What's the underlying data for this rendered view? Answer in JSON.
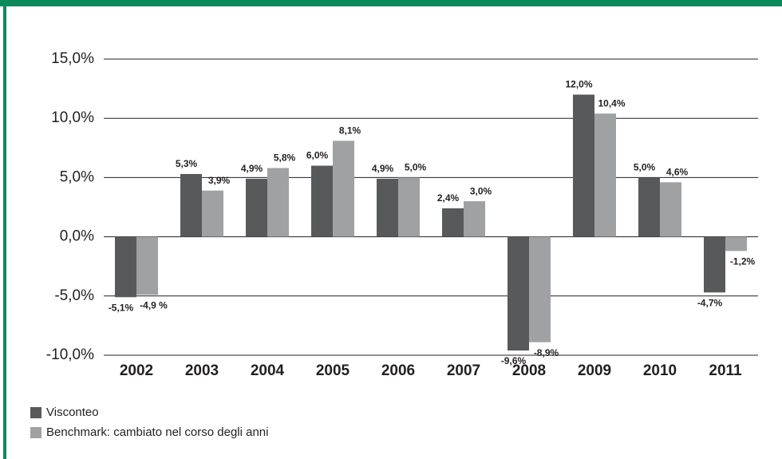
{
  "chart_data": {
    "type": "bar",
    "categories": [
      "2002",
      "2003",
      "2004",
      "2005",
      "2006",
      "2007",
      "2008",
      "2009",
      "2010",
      "2011"
    ],
    "series": [
      {
        "name": "Visconteo",
        "color": "#58595b",
        "values": [
          -5.1,
          5.3,
          4.9,
          6.0,
          4.9,
          2.4,
          -9.6,
          12.0,
          5.0,
          -4.7
        ],
        "value_labels": [
          "-5,1%",
          "5,3%",
          "4,9%",
          "6,0%",
          "4,9%",
          "2,4%",
          "-9,6%",
          "12,0%",
          "5,0%",
          "-4,7%"
        ]
      },
      {
        "name": "Benchmark: cambiato nel corso degli anni",
        "color": "#a0a1a3",
        "values": [
          -4.9,
          3.9,
          5.8,
          8.1,
          5.0,
          3.0,
          -8.9,
          10.4,
          4.6,
          -1.2
        ],
        "value_labels": [
          "-4,9 %",
          "3,9%",
          "5,8%",
          "8,1%",
          "5,0%",
          "3,0%",
          "-8,9%",
          "10,4%",
          "4,6%",
          "-1,2%"
        ]
      }
    ],
    "ylim": [
      -10,
      15
    ],
    "yticks": [
      {
        "value": -10,
        "label": "-10,0%"
      },
      {
        "value": -5,
        "label": "-5,0%"
      },
      {
        "value": 0,
        "label": "0,0%"
      },
      {
        "value": 5,
        "label": "5,0%"
      },
      {
        "value": 10,
        "label": "10,0%"
      },
      {
        "value": 15,
        "label": "15,0%"
      }
    ],
    "grid": true,
    "legend": "bottom-left"
  }
}
